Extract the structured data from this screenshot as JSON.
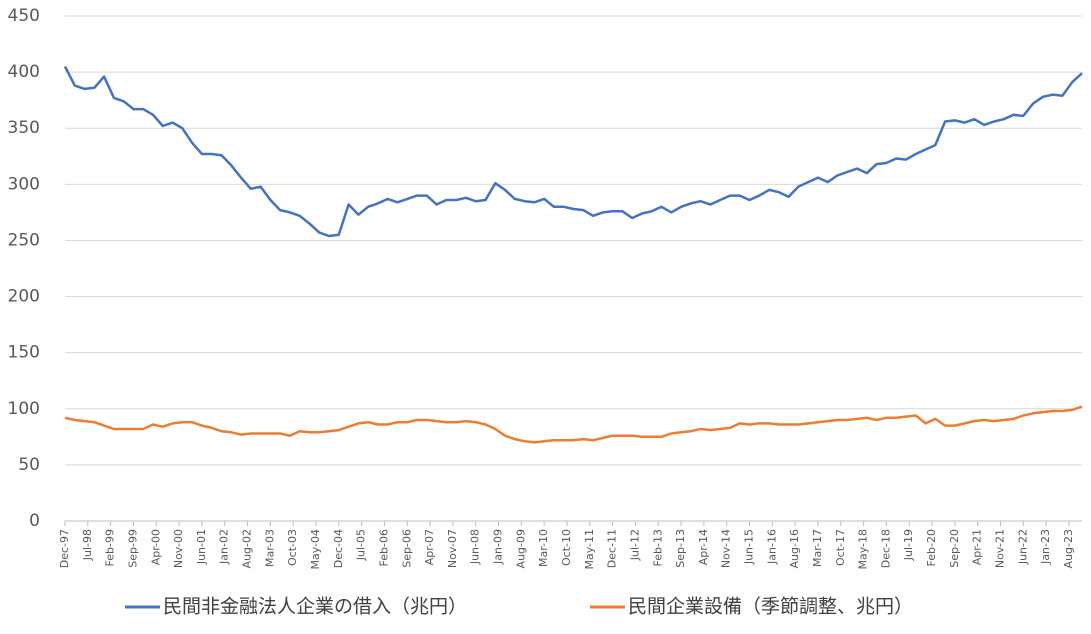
{
  "chart_data": {
    "type": "line",
    "x": [
      "Dec-97",
      "Mar-98",
      "Jun-98",
      "Sep-98",
      "Dec-98",
      "Mar-99",
      "Jun-99",
      "Sep-99",
      "Dec-99",
      "Mar-00",
      "Jun-00",
      "Sep-00",
      "Dec-00",
      "Mar-01",
      "Jun-01",
      "Sep-01",
      "Dec-01",
      "Mar-02",
      "Jun-02",
      "Sep-02",
      "Dec-02",
      "Mar-03",
      "Jun-03",
      "Sep-03",
      "Dec-03",
      "Mar-04",
      "Jun-04",
      "Sep-04",
      "Dec-04",
      "Mar-05",
      "Jun-05",
      "Sep-05",
      "Dec-05",
      "Mar-06",
      "Jun-06",
      "Sep-06",
      "Dec-06",
      "Mar-07",
      "Jun-07",
      "Sep-07",
      "Dec-07",
      "Mar-08",
      "Jun-08",
      "Sep-08",
      "Dec-08",
      "Mar-09",
      "Jun-09",
      "Sep-09",
      "Dec-09",
      "Mar-10",
      "Jun-10",
      "Sep-10",
      "Dec-10",
      "Mar-11",
      "Jun-11",
      "Sep-11",
      "Dec-11",
      "Mar-12",
      "Jun-12",
      "Sep-12",
      "Dec-12",
      "Mar-13",
      "Jun-13",
      "Sep-13",
      "Dec-13",
      "Mar-14",
      "Jun-14",
      "Sep-14",
      "Dec-14",
      "Mar-15",
      "Jun-15",
      "Sep-15",
      "Dec-15",
      "Mar-16",
      "Jun-16",
      "Sep-16",
      "Dec-16",
      "Mar-17",
      "Jun-17",
      "Sep-17",
      "Dec-17",
      "Mar-18",
      "Jun-18",
      "Sep-18",
      "Dec-18",
      "Mar-19",
      "Jun-19",
      "Sep-19",
      "Dec-19",
      "Mar-20",
      "Jun-20",
      "Sep-20",
      "Dec-20",
      "Mar-21",
      "Jun-21",
      "Sep-21",
      "Dec-21",
      "Mar-22",
      "Jun-22",
      "Sep-22",
      "Dec-22",
      "Mar-23",
      "Jun-23",
      "Sep-23",
      "Dec-23"
    ],
    "series": [
      {
        "name": "民間非金融法人企業の借入（兆円）",
        "color": "#4472c4",
        "values": [
          405,
          388,
          385,
          386,
          396,
          377,
          374,
          367,
          367,
          362,
          352,
          355,
          350,
          337,
          327,
          327,
          326,
          317,
          306,
          296,
          298,
          286,
          277,
          275,
          272,
          265,
          257,
          254,
          255,
          282,
          273,
          280,
          283,
          287,
          284,
          287,
          290,
          290,
          282,
          286,
          286,
          288,
          285,
          286,
          301,
          295,
          287,
          285,
          284,
          287,
          280,
          280,
          278,
          277,
          272,
          275,
          276,
          276,
          270,
          274,
          276,
          280,
          275,
          280,
          283,
          285,
          282,
          286,
          290,
          290,
          286,
          290,
          295,
          293,
          289,
          298,
          302,
          306,
          302,
          308,
          311,
          314,
          310,
          318,
          319,
          323,
          322,
          327,
          331,
          335,
          356,
          357,
          355,
          358,
          353,
          356,
          358,
          362,
          361,
          372,
          378,
          380,
          379,
          391,
          399
        ]
      },
      {
        "name": "民間企業設備（季節調整、兆円）",
        "color": "#ed7d31",
        "values": [
          92,
          90,
          89,
          88,
          85,
          82,
          82,
          82,
          82,
          86,
          84,
          87,
          88,
          88,
          85,
          83,
          80,
          79,
          77,
          78,
          78,
          78,
          78,
          76,
          80,
          79,
          79,
          80,
          81,
          84,
          87,
          88,
          86,
          86,
          88,
          88,
          90,
          90,
          89,
          88,
          88,
          89,
          88,
          86,
          82,
          76,
          73,
          71,
          70,
          71,
          72,
          72,
          72,
          73,
          72,
          74,
          76,
          76,
          76,
          75,
          75,
          75,
          78,
          79,
          80,
          82,
          81,
          82,
          83,
          87,
          86,
          87,
          87,
          86,
          86,
          86,
          87,
          88,
          89,
          90,
          90,
          91,
          92,
          90,
          92,
          92,
          93,
          94,
          87,
          91,
          85,
          85,
          87,
          89,
          90,
          89,
          90,
          91,
          94,
          96,
          97,
          98,
          98,
          99,
          102
        ]
      }
    ],
    "xlim": [
      "Dec-97",
      "Dec-23"
    ],
    "xticks": [
      "Dec-97",
      "Jul-98",
      "Feb-99",
      "Sep-99",
      "Apr-00",
      "Nov-00",
      "Jun-01",
      "Jan-02",
      "Aug-02",
      "Mar-03",
      "Oct-03",
      "May-04",
      "Dec-04",
      "Jul-05",
      "Feb-06",
      "Sep-06",
      "Apr-07",
      "Nov-07",
      "Jun-08",
      "Jan-09",
      "Aug-09",
      "Mar-10",
      "Oct-10",
      "May-11",
      "Dec-11",
      "Jul-12",
      "Feb-13",
      "Sep-13",
      "Apr-14",
      "Nov-14",
      "Jun-15",
      "Jan-16",
      "Aug-16",
      "Mar-17",
      "Oct-17",
      "May-18",
      "Dec-18",
      "Jul-19",
      "Feb-20",
      "Sep-20",
      "Apr-21",
      "Nov-21",
      "Jun-22",
      "Jan-23",
      "Aug-23"
    ],
    "ylim": [
      0,
      450
    ],
    "yticks": [
      0,
      50,
      100,
      150,
      200,
      250,
      300,
      350,
      400,
      450
    ],
    "grid": true,
    "legend": "bottom"
  }
}
